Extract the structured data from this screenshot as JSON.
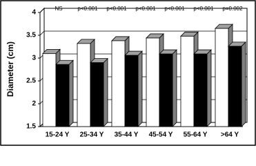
{
  "chart_data": {
    "type": "bar",
    "y_label": "Diameter (cm)",
    "categories": [
      "15-24 Y",
      "25-34 Y",
      "35-44 Y",
      "45-54 Y",
      "55-64 Y",
      ">64 Y"
    ],
    "annotations": [
      "NS",
      "p<0.001",
      "p<0.001",
      "p<0.001",
      "p<0.001",
      "p<0.001",
      "p=0.002"
    ],
    "series": [
      {
        "color": "#ffffff",
        "values": [
          3.1,
          3.32,
          3.38,
          3.44,
          3.48,
          3.65
        ]
      },
      {
        "color": "#000000",
        "values": [
          2.86,
          2.9,
          3.06,
          3.09,
          3.09,
          3.26
        ]
      }
    ],
    "ylim": [
      1.5,
      4
    ],
    "yticks": [
      1.5,
      2,
      2.5,
      3,
      3.5,
      4
    ],
    "grid": true
  }
}
